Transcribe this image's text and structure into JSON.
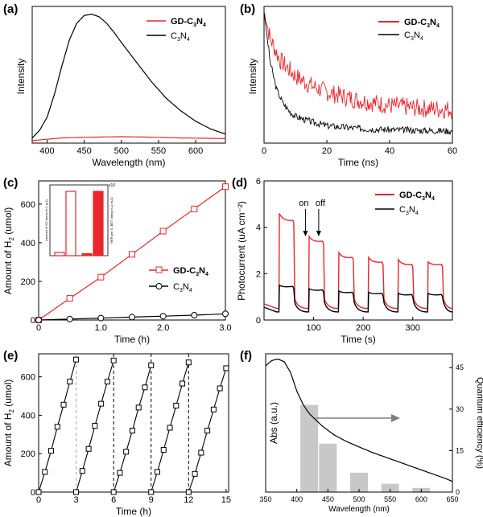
{
  "colors": {
    "red": "#e8262b",
    "black": "#000000",
    "bar_gray": "#c8c8c8",
    "arrow_gray": "#808080"
  },
  "chart_data": [
    {
      "panel": "(a)",
      "type": "line",
      "xlabel": "Wavelength (nm)",
      "ylabel": "Intensity",
      "xlim": [
        380,
        640
      ],
      "xticks": [
        400,
        450,
        500,
        550,
        600
      ],
      "ylim": [
        0,
        1
      ],
      "series": [
        {
          "name": "GD-C3N4",
          "name_main": "GD-C",
          "name_sub1": "3",
          "name_mid": "N",
          "name_sub2": "4",
          "color": "#e8262b",
          "x": [
            380,
            400,
            420,
            450,
            480,
            500,
            520,
            550,
            580,
            610,
            640
          ],
          "y": [
            0.02,
            0.03,
            0.04,
            0.045,
            0.048,
            0.05,
            0.048,
            0.045,
            0.04,
            0.038,
            0.035
          ]
        },
        {
          "name": "C3N4",
          "name_main": "C",
          "name_sub1": "3",
          "name_mid": "N",
          "name_sub2": "4",
          "color": "#000000",
          "x": [
            380,
            390,
            400,
            410,
            420,
            430,
            440,
            450,
            460,
            470,
            480,
            490,
            500,
            520,
            540,
            560,
            580,
            600,
            620,
            640
          ],
          "y": [
            0.04,
            0.1,
            0.2,
            0.38,
            0.6,
            0.8,
            0.93,
            0.99,
            1.0,
            0.98,
            0.93,
            0.86,
            0.78,
            0.63,
            0.48,
            0.35,
            0.25,
            0.17,
            0.11,
            0.07
          ]
        }
      ]
    },
    {
      "panel": "(b)",
      "type": "line",
      "xlabel": "Time (ns)",
      "ylabel": "Intensity",
      "xlim": [
        0,
        60
      ],
      "xticks": [
        0,
        20,
        40,
        60
      ],
      "ylim": [
        0,
        1
      ],
      "series": [
        {
          "name": "GD-C3N4",
          "name_main": "GD-C",
          "name_sub1": "3",
          "name_mid": "N",
          "name_sub2": "4",
          "color": "#e8262b",
          "x": [
            0,
            2,
            5,
            10,
            15,
            20,
            30,
            40,
            50,
            60
          ],
          "y": [
            0.98,
            0.78,
            0.62,
            0.5,
            0.43,
            0.38,
            0.32,
            0.28,
            0.26,
            0.25
          ]
        },
        {
          "name": "C3N4",
          "name_main": "C",
          "name_sub1": "3",
          "name_mid": "N",
          "name_sub2": "4",
          "color": "#000000",
          "x": [
            0,
            2,
            4,
            6,
            8,
            10,
            15,
            20,
            30,
            40,
            50,
            60
          ],
          "y": [
            0.98,
            0.6,
            0.4,
            0.3,
            0.24,
            0.2,
            0.16,
            0.13,
            0.11,
            0.1,
            0.095,
            0.09
          ]
        }
      ]
    },
    {
      "panel": "(c)",
      "type": "line",
      "xlabel": "Time (h)",
      "ylabel_main": "Amount of H",
      "ylabel_sub": "2",
      "ylabel_unit": " (umol)",
      "xlim": [
        0,
        3.0
      ],
      "xticks": [
        0,
        1.0,
        2.0,
        3.0
      ],
      "xtick_labels": [
        "0",
        "1.0",
        "2.0",
        "3.0"
      ],
      "ylim": [
        0,
        720
      ],
      "yticks": [
        0,
        200,
        400,
        600
      ],
      "series": [
        {
          "name": "GD-C3N4",
          "name_main": "GD-C",
          "name_sub1": "3",
          "name_mid": "N",
          "name_sub2": "4",
          "color": "#e8262b",
          "marker": "square",
          "x": [
            0,
            0.5,
            1.0,
            1.5,
            2.0,
            2.5,
            3.0
          ],
          "y": [
            0,
            112,
            222,
            340,
            460,
            575,
            690
          ]
        },
        {
          "name": "C3N4",
          "name_main": "C",
          "name_sub1": "3",
          "name_mid": "N",
          "name_sub2": "4",
          "color": "#000000",
          "marker": "circle",
          "x": [
            0,
            0.5,
            1.0,
            1.5,
            2.0,
            2.5,
            3.0
          ],
          "y": [
            0,
            5,
            10,
            15,
            20,
            25,
            32
          ]
        }
      ],
      "inset": {
        "type": "bar",
        "ylabel_left": "Amount of H2 (mmol h-1 g-1)",
        "ylabel_right": "HER per S_BET (mmol h-1 m-2)",
        "right_axis_max": "x10",
        "groups": [
          {
            "values": [
              0.05,
              1.0
            ],
            "styles": [
              "outline",
              "outline"
            ]
          },
          {
            "values": [
              0.03,
              1.0
            ],
            "styles": [
              "filled",
              "filled"
            ]
          }
        ]
      }
    },
    {
      "panel": "(d)",
      "type": "line",
      "xlabel": "Time (s)",
      "ylabel": "Photocurrent (uA cm⁻²)",
      "xlim": [
        0,
        380
      ],
      "xticks": [
        100,
        200,
        300
      ],
      "ylim": [
        0,
        6
      ],
      "yticks": [
        0,
        2,
        4,
        6
      ],
      "annotations": [
        "on",
        "off"
      ],
      "on_times": [
        30,
        90,
        150,
        210,
        270,
        330
      ],
      "on_duration": 30,
      "series": [
        {
          "name": "GD-C3N4",
          "name_main": "GD-C",
          "name_sub1": "3",
          "name_mid": "N",
          "name_sub2": "4",
          "color": "#e8262b",
          "baseline": 0.5,
          "peaks": [
            4.6,
            3.6,
            2.9,
            2.7,
            2.6,
            2.5
          ],
          "plateaus": [
            4.3,
            3.4,
            2.7,
            2.5,
            2.4,
            2.4
          ]
        },
        {
          "name": "C3N4",
          "name_main": "C",
          "name_sub1": "3",
          "name_mid": "N",
          "name_sub2": "4",
          "color": "#000000",
          "baseline": 0.35,
          "peaks": [
            1.5,
            1.35,
            1.25,
            1.2,
            1.15,
            1.15
          ],
          "plateaus": [
            1.45,
            1.3,
            1.2,
            1.15,
            1.1,
            1.1
          ]
        }
      ]
    },
    {
      "panel": "(e)",
      "type": "line",
      "xlabel": "Time (h)",
      "ylabel_main": "Amount of H",
      "ylabel_sub": "2",
      "ylabel_unit": " (umol)",
      "xlim": [
        0,
        15.2
      ],
      "xticks": [
        0,
        3,
        6,
        9,
        12,
        15
      ],
      "ylim": [
        0,
        720
      ],
      "yticks": [
        0,
        200,
        400,
        600
      ],
      "cycle_dividers": [
        3,
        6,
        9,
        12
      ],
      "series": [
        {
          "name": "cycles",
          "color": "#000000",
          "marker": "square",
          "cycles": [
            {
              "x": [
                0,
                0.5,
                1.0,
                1.5,
                2.0,
                2.5,
                3.0
              ],
              "y": [
                0,
                105,
                215,
                340,
                455,
                575,
                690
              ]
            },
            {
              "x": [
                3.0,
                3.5,
                4.0,
                4.5,
                5.0,
                5.5,
                6.0
              ],
              "y": [
                0,
                110,
                225,
                345,
                460,
                575,
                685
              ]
            },
            {
              "x": [
                6.0,
                6.5,
                7.0,
                7.5,
                8.0,
                8.5,
                9.0
              ],
              "y": [
                0,
                100,
                210,
                320,
                440,
                545,
                660
              ]
            },
            {
              "x": [
                9.0,
                9.5,
                10.0,
                10.5,
                11.0,
                11.5,
                12.0
              ],
              "y": [
                0,
                105,
                220,
                335,
                450,
                565,
                675
              ]
            },
            {
              "x": [
                12.0,
                12.5,
                13.0,
                13.5,
                14.0,
                14.5,
                15.0
              ],
              "y": [
                0,
                95,
                205,
                320,
                430,
                540,
                645
              ]
            }
          ]
        }
      ]
    },
    {
      "panel": "(f)",
      "type": "bar+line",
      "xlabel": "Wavelength (nm)",
      "ylabel_left": "Abs (a.u.)",
      "ylabel_right": "Quantum efficiency (%)",
      "xlim": [
        350,
        650
      ],
      "xticks": [
        350,
        400,
        450,
        500,
        550,
        600,
        650
      ],
      "xtick_labels": [
        "350",
        "400",
        "450",
        "500",
        "550",
        "600",
        "650"
      ],
      "right_ylim": [
        0,
        50
      ],
      "right_yticks": [
        0,
        15,
        30,
        45
      ],
      "bars": {
        "x": [
          420,
          450,
          500,
          550,
          600
        ],
        "values": [
          31.5,
          17.5,
          7,
          3,
          1.5
        ]
      },
      "absorbance": {
        "x": [
          350,
          360,
          370,
          380,
          390,
          400,
          410,
          420,
          440,
          460,
          480,
          500,
          520,
          550,
          580,
          610,
          640,
          650
        ],
        "y": [
          0.95,
          0.99,
          1.0,
          0.98,
          0.9,
          0.76,
          0.66,
          0.59,
          0.5,
          0.43,
          0.38,
          0.34,
          0.3,
          0.25,
          0.2,
          0.15,
          0.1,
          0.08
        ]
      }
    }
  ]
}
